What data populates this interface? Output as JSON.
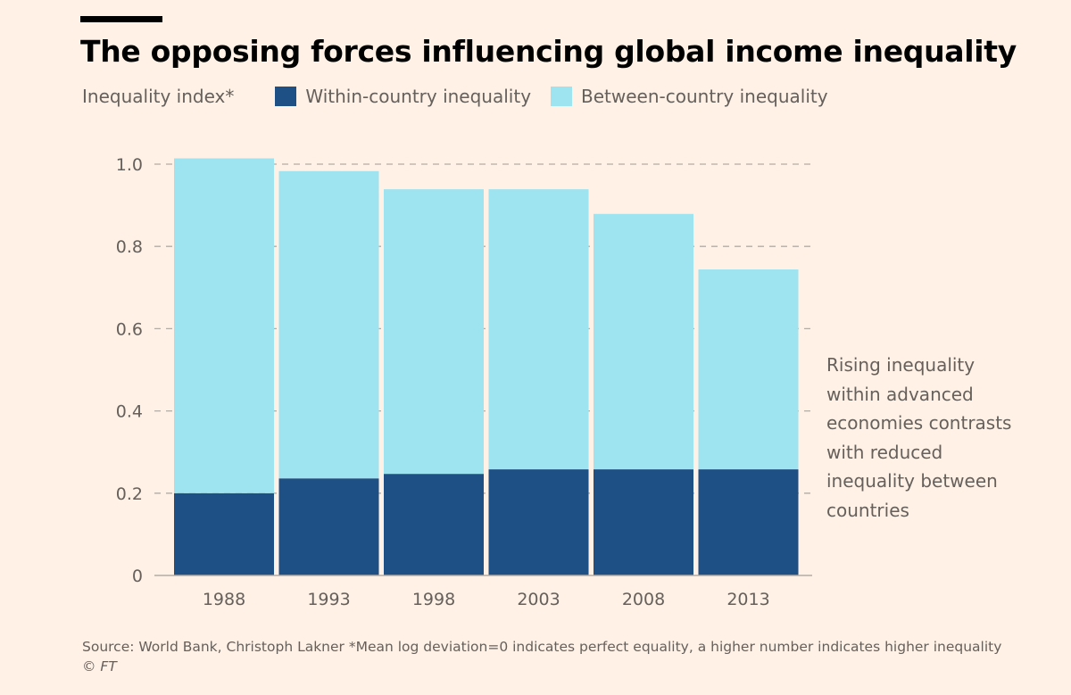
{
  "header": {
    "title": "The opposing forces influencing global income inequality"
  },
  "legend": {
    "unit_label": "Inequality index*",
    "items": [
      {
        "label": "Within-country inequality",
        "color": "#1f5085"
      },
      {
        "label": "Between-country inequality",
        "color": "#9ee3f0"
      }
    ]
  },
  "annotation": {
    "lines": [
      "Rising inequality",
      "within advanced",
      "economies contrasts",
      "with reduced",
      "inequality between",
      "countries"
    ]
  },
  "footer": {
    "source": "Source: World Bank, Christoph Lakner *Mean log deviation=0 indicates perfect equality, a higher number indicates higher inequality",
    "credit": "© FT"
  },
  "chart_data": {
    "type": "bar",
    "stacked": true,
    "title": "The opposing forces influencing global income inequality",
    "xlabel": "",
    "ylabel": "Inequality index*",
    "categories": [
      "1988",
      "1993",
      "1998",
      "2003",
      "2008",
      "2013"
    ],
    "series": [
      {
        "name": "Within-country inequality",
        "color": "#1f5085",
        "values": [
          0.2,
          0.236,
          0.247,
          0.258,
          0.258,
          0.258
        ]
      },
      {
        "name": "Between-country inequality",
        "color": "#9ee3f0",
        "values": [
          0.814,
          0.747,
          0.692,
          0.681,
          0.621,
          0.486
        ]
      }
    ],
    "totals": [
      1.014,
      0.983,
      0.939,
      0.939,
      0.879,
      0.744
    ],
    "ylim": [
      0,
      1.0
    ],
    "yticks": [
      0,
      0.2,
      0.4,
      0.6,
      0.8,
      1.0
    ],
    "ytick_labels": [
      "0",
      "0.2",
      "0.4",
      "0.6",
      "0.8",
      "1.0"
    ],
    "grid": true,
    "legend_position": "top-left"
  }
}
